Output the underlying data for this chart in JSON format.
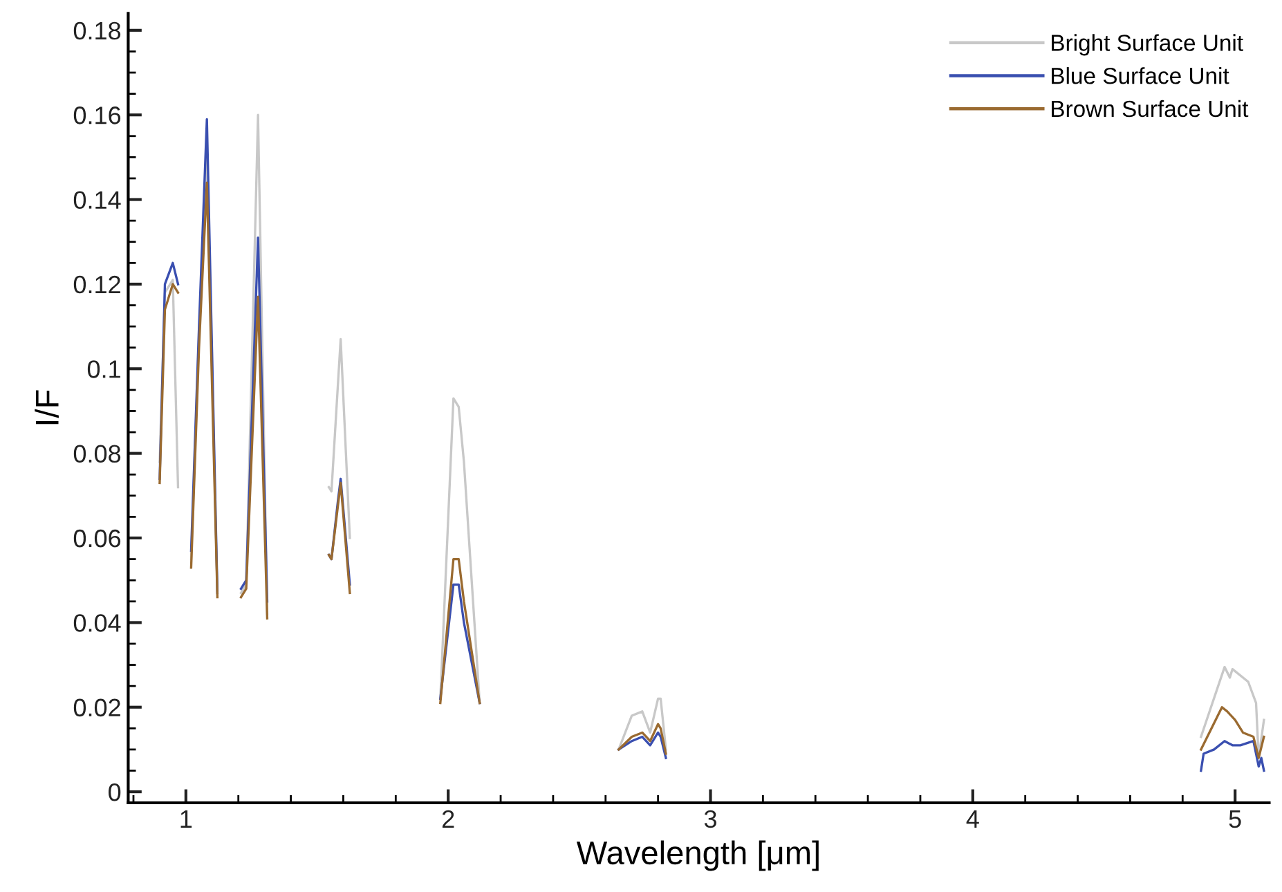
{
  "chart_data": {
    "type": "line",
    "xlabel": "Wavelength [μm]",
    "ylabel": "I/F",
    "xlim": [
      0.78,
      5.13
    ],
    "ylim": [
      -0.0026,
      0.184
    ],
    "xticks": [
      1,
      2,
      3,
      4,
      5
    ],
    "yticks": [
      0,
      0.02,
      0.04,
      0.06,
      0.08,
      0.1,
      0.12,
      0.14,
      0.16,
      0.18
    ],
    "legend": "top right",
    "grid": false,
    "series": [
      {
        "name": "Bright Surface Unit",
        "color": "#c8c8c8",
        "x": [
          0.9,
          0.92,
          0.95,
          0.97,
          null,
          1.02,
          1.05,
          1.08,
          1.12,
          null,
          1.21,
          1.23,
          1.275,
          1.31,
          null,
          1.545,
          1.555,
          1.59,
          1.625,
          null,
          1.97,
          2.02,
          2.04,
          2.06,
          2.12,
          null,
          2.65,
          2.7,
          2.74,
          2.77,
          2.8,
          2.81,
          2.83,
          null,
          4.87,
          4.96,
          4.98,
          4.99,
          5.05,
          5.08,
          5.09,
          5.11
        ],
        "values": [
          0.078,
          0.118,
          0.121,
          0.072,
          null,
          0.055,
          0.108,
          0.15,
          0.047,
          null,
          0.047,
          0.049,
          0.16,
          0.042,
          null,
          0.072,
          0.071,
          0.107,
          0.06,
          null,
          0.022,
          0.093,
          0.091,
          0.078,
          0.021,
          null,
          0.01,
          0.018,
          0.019,
          0.014,
          0.022,
          0.022,
          0.01,
          null,
          0.013,
          0.0295,
          0.027,
          0.029,
          0.026,
          0.021,
          0.008,
          0.017
        ]
      },
      {
        "name": "Blue Surface Unit",
        "color": "#3a4fb0",
        "x": [
          0.9,
          0.92,
          0.95,
          0.97,
          null,
          1.02,
          1.05,
          1.08,
          1.12,
          null,
          1.21,
          1.23,
          1.275,
          1.31,
          null,
          1.545,
          1.555,
          1.58,
          1.59,
          1.625,
          null,
          1.97,
          2.02,
          2.04,
          2.06,
          2.12,
          null,
          2.65,
          2.7,
          2.74,
          2.77,
          2.8,
          2.81,
          2.83,
          null,
          4.87,
          4.88,
          4.92,
          4.96,
          4.99,
          5.02,
          5.07,
          5.09,
          5.1,
          5.11
        ],
        "values": [
          0.074,
          0.12,
          0.125,
          0.12,
          null,
          0.057,
          0.11,
          0.159,
          0.047,
          null,
          0.048,
          0.05,
          0.131,
          0.045,
          null,
          0.056,
          0.055,
          0.069,
          0.074,
          0.049,
          null,
          0.022,
          0.049,
          0.049,
          0.04,
          0.021,
          null,
          0.01,
          0.012,
          0.013,
          0.011,
          0.014,
          0.013,
          0.008,
          null,
          0.005,
          0.009,
          0.01,
          0.012,
          0.011,
          0.011,
          0.012,
          0.006,
          0.008,
          0.005
        ]
      },
      {
        "name": "Brown Surface Unit",
        "color": "#9a6a30",
        "x": [
          0.9,
          0.92,
          0.95,
          0.97,
          null,
          1.02,
          1.05,
          1.08,
          1.12,
          null,
          1.21,
          1.23,
          1.275,
          1.31,
          null,
          1.545,
          1.555,
          1.59,
          1.625,
          null,
          1.97,
          2.02,
          2.04,
          2.06,
          2.12,
          null,
          2.65,
          2.7,
          2.74,
          2.77,
          2.8,
          2.81,
          2.83,
          null,
          4.87,
          4.95,
          4.97,
          5.0,
          5.03,
          5.07,
          5.09,
          5.11
        ],
        "values": [
          0.073,
          0.114,
          0.12,
          0.118,
          null,
          0.053,
          0.105,
          0.144,
          0.046,
          null,
          0.046,
          0.048,
          0.117,
          0.041,
          null,
          0.056,
          0.055,
          0.073,
          0.047,
          null,
          0.021,
          0.055,
          0.055,
          0.045,
          0.021,
          null,
          0.01,
          0.013,
          0.014,
          0.012,
          0.016,
          0.015,
          0.009,
          null,
          0.01,
          0.02,
          0.019,
          0.017,
          0.014,
          0.013,
          0.008,
          0.013
        ]
      }
    ]
  }
}
